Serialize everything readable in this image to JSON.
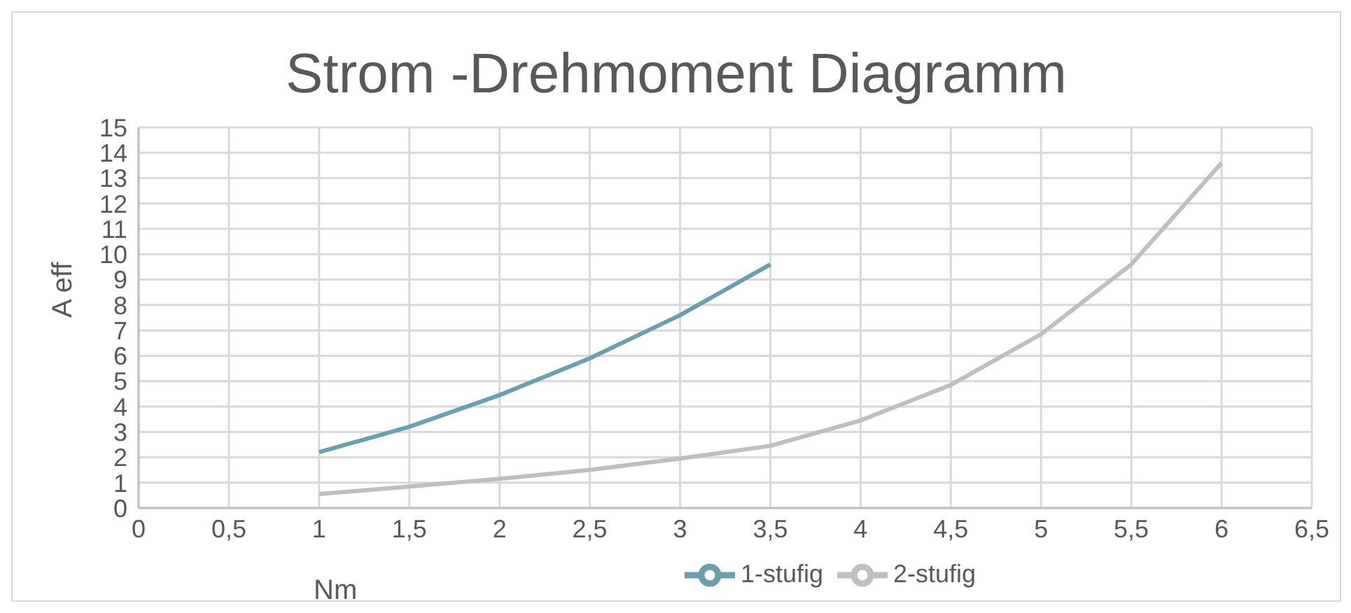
{
  "chart_data": {
    "type": "line",
    "title": "Strom -Drehmoment Diagramm",
    "xlabel": "Nm",
    "ylabel": "A eff",
    "series": [
      {
        "name": "1-stufig",
        "color": "#6a9fad",
        "x": [
          1,
          1.5,
          2,
          2.5,
          3,
          3.5
        ],
        "values": [
          2.2,
          3.2,
          4.45,
          5.9,
          7.6,
          9.6
        ]
      },
      {
        "name": "2-stufig",
        "color": "#bfbfbf",
        "x": [
          1,
          1.5,
          2,
          2.5,
          3,
          3.5,
          4,
          4.5,
          5,
          5.5,
          6
        ],
        "values": [
          0.55,
          0.85,
          1.15,
          1.5,
          1.95,
          2.45,
          3.45,
          4.85,
          6.85,
          9.6,
          13.6
        ]
      }
    ],
    "xlim": [
      0,
      6.5
    ],
    "xticks": [
      0,
      {
        "value": 0.5,
        "label": "0,5"
      },
      1,
      {
        "value": 1.5,
        "label": "1,5"
      },
      2,
      {
        "value": 2.5,
        "label": "2,5"
      },
      3,
      {
        "value": 3.5,
        "label": "3,5"
      },
      4,
      {
        "value": 4.5,
        "label": "4,5"
      },
      5,
      {
        "value": 5.5,
        "label": "5,5"
      },
      6,
      {
        "value": 6.5,
        "label": "6,5"
      }
    ],
    "ylim": [
      0,
      15
    ],
    "yticks": [
      0,
      1,
      2,
      3,
      4,
      5,
      6,
      7,
      8,
      9,
      10,
      11,
      12,
      13,
      14,
      15
    ],
    "grid": true,
    "legend": "bottom",
    "marker": "none",
    "line_style": "solid"
  }
}
